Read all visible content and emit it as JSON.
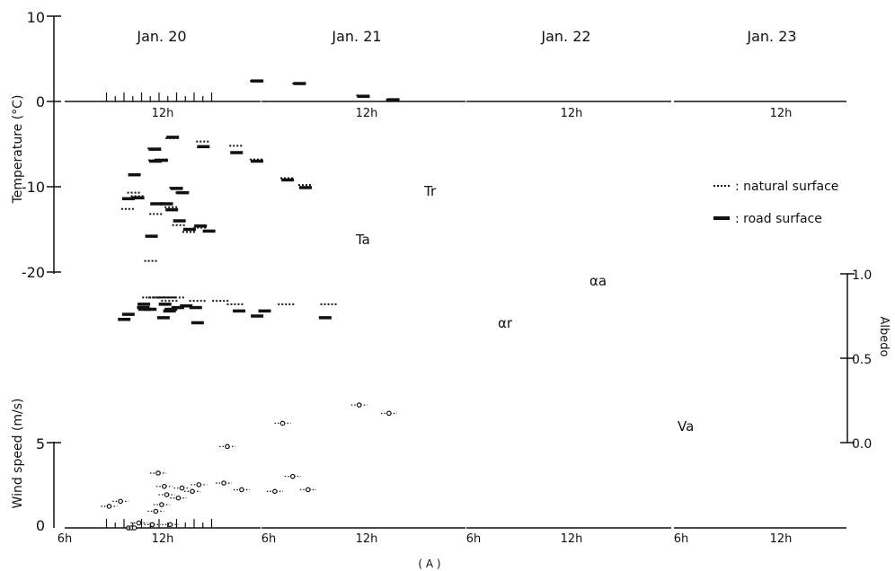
{
  "chart_data": {
    "type": "scatter",
    "caption": "( A )",
    "days": [
      "Jan. 20",
      "Jan. 21",
      "Jan. 22",
      "Jan. 23"
    ],
    "x_tick_labels": {
      "start": "6h",
      "noon": "12h"
    },
    "temperature_axis": {
      "label": "Temperature (°C)",
      "ticks": [
        "10",
        "0",
        "-10",
        "-20"
      ],
      "ylim": [
        -20,
        10
      ]
    },
    "albedo_axis": {
      "label": "Albedo",
      "ticks": [
        "1.0",
        "0.5",
        "0.0"
      ],
      "ylim": [
        0.0,
        1.0
      ]
    },
    "wind_axis": {
      "label": "Wind speed (m/s)",
      "ticks": [
        "5",
        "0"
      ],
      "ylim": [
        0,
        8
      ]
    },
    "legend": {
      "natural": ": natural surface",
      "road": ": road surface"
    },
    "annotations": {
      "Tr": "Tr",
      "Ta": "Ta",
      "alpha_a": "αa",
      "alpha_r": "αr",
      "Va": "Va"
    },
    "series": [
      {
        "name": "natural surface",
        "panel": "temperature",
        "points": [
          [
            0,
            8.5,
            -12.6
          ],
          [
            0,
            9.6,
            -11.1
          ],
          [
            0,
            11.6,
            -6.9
          ],
          [
            0,
            12.3,
            -6.8
          ],
          [
            0,
            14,
            -10.1
          ],
          [
            0,
            14.7,
            -10.7
          ],
          [
            1,
            7.2,
            -14.8
          ],
          [
            1,
            8.5,
            -15.3
          ],
          [
            1,
            9.7,
            -14.5
          ],
          [
            1,
            10.6,
            -12.4
          ],
          [
            1,
            11.2,
            -12.0
          ],
          [
            1,
            12.4,
            -13.2
          ],
          [
            1,
            13.0,
            -18.7
          ],
          [
            2,
            6.3,
            -9.8
          ],
          [
            2,
            7.0,
            -9.0
          ],
          [
            2,
            8.2,
            -6.8
          ],
          [
            2,
            9.0,
            -5.2
          ],
          [
            2,
            10.3,
            -4.7
          ],
          [
            2,
            11.5,
            -4.3
          ],
          [
            2,
            12.2,
            -5.5
          ],
          [
            2,
            13.0,
            -10.7
          ],
          [
            3,
            6.6,
            0.2
          ],
          [
            3,
            7.3,
            0.7
          ],
          [
            3,
            8.8,
            2.1
          ],
          [
            3,
            9.8,
            2.4
          ]
        ]
      },
      {
        "name": "road surface",
        "panel": "temperature",
        "points": [
          [
            0,
            8.5,
            -11.4
          ],
          [
            0,
            9.6,
            -11.3
          ],
          [
            0,
            11.6,
            -7.0
          ],
          [
            0,
            12.3,
            -6.9
          ],
          [
            0,
            14,
            -10.2
          ],
          [
            0,
            14.7,
            -10.7
          ],
          [
            1,
            6.2,
            -15.2
          ],
          [
            1,
            7.2,
            -14.6
          ],
          [
            1,
            8.5,
            -15.0
          ],
          [
            1,
            9.7,
            -14.0
          ],
          [
            1,
            10.6,
            -12.7
          ],
          [
            1,
            11.2,
            -12.0
          ],
          [
            1,
            12.4,
            -12.0
          ],
          [
            1,
            13.0,
            -15.8
          ],
          [
            2,
            6.3,
            -10.1
          ],
          [
            2,
            7.0,
            -9.2
          ],
          [
            2,
            8.2,
            -7.0
          ],
          [
            2,
            9.0,
            -6.0
          ],
          [
            2,
            10.3,
            -5.3
          ],
          [
            2,
            11.5,
            -4.2
          ],
          [
            2,
            12.2,
            -5.6
          ],
          [
            2,
            13.0,
            -8.6
          ],
          [
            3,
            6.6,
            0.2
          ],
          [
            3,
            7.3,
            0.6
          ],
          [
            3,
            8.8,
            2.1
          ],
          [
            3,
            9.8,
            2.4
          ]
        ]
      },
      {
        "name": "natural surface albedo",
        "panel": "albedo",
        "points": [
          [
            0,
            11.1,
            0.86
          ],
          [
            0,
            12.4,
            0.86
          ],
          [
            0,
            13.1,
            0.86
          ],
          [
            1,
            10.0,
            0.86
          ],
          [
            1,
            11.1,
            0.86
          ],
          [
            1,
            12.3,
            0.86
          ],
          [
            2,
            9.6,
            0.84
          ],
          [
            2,
            10.5,
            0.84
          ],
          [
            2,
            11.6,
            0.84
          ],
          [
            3,
            8.1,
            0.82
          ],
          [
            3,
            9.1,
            0.82
          ],
          [
            3,
            10.3,
            0.82
          ]
        ]
      },
      {
        "name": "road surface albedo",
        "panel": "albedo",
        "points": [
          [
            0,
            8.5,
            0.76
          ],
          [
            0,
            10.2,
            0.8
          ],
          [
            0,
            11.0,
            0.79
          ],
          [
            0,
            12.5,
            0.74
          ],
          [
            0,
            13.2,
            0.78
          ],
          [
            1,
            8.9,
            0.81
          ],
          [
            1,
            10.7,
            0.79
          ],
          [
            1,
            11.4,
            0.82
          ],
          [
            1,
            13.9,
            0.82
          ],
          [
            2,
            7.9,
            0.78
          ],
          [
            2,
            8.9,
            0.78
          ],
          [
            2,
            10.6,
            0.8
          ],
          [
            2,
            11.3,
            0.8
          ],
          [
            2,
            12.6,
            0.79
          ],
          [
            2,
            13.4,
            0.73
          ],
          [
            3,
            8.2,
            0.74
          ],
          [
            3,
            9.8,
            0.75
          ],
          [
            3,
            11.2,
            0.71
          ]
        ]
      },
      {
        "name": "Va",
        "panel": "wind",
        "points": [
          [
            0,
            6.3,
            1.3
          ],
          [
            0,
            7.6,
            1.6
          ],
          [
            0,
            8.5,
            0.0
          ],
          [
            0,
            11.9,
            3.3
          ],
          [
            0,
            12.6,
            2.5
          ],
          [
            0,
            14.2,
            1.8
          ],
          [
            0,
            15.8,
            2.2
          ],
          [
            1,
            7.4,
            2.6
          ],
          [
            1,
            9.4,
            2.4
          ],
          [
            1,
            11.2,
            2.0
          ],
          [
            1,
            11.8,
            1.4
          ],
          [
            1,
            12.5,
            1.0
          ],
          [
            1,
            14.5,
            0.3
          ],
          [
            1,
            15.4,
            0.0
          ],
          [
            2,
            6.2,
            2.3
          ],
          [
            2,
            6.8,
            3.1
          ],
          [
            2,
            7.5,
            2.2
          ],
          [
            2,
            8.8,
            2.3
          ],
          [
            2,
            9.5,
            2.7
          ],
          [
            2,
            11.6,
            0.2
          ],
          [
            2,
            12.3,
            0.2
          ],
          [
            2,
            13.0,
            0.0
          ],
          [
            3,
            6.7,
            6.9
          ],
          [
            3,
            7.4,
            7.4
          ],
          [
            3,
            9.2,
            6.3
          ],
          [
            3,
            10.5,
            4.9
          ]
        ]
      }
    ]
  }
}
